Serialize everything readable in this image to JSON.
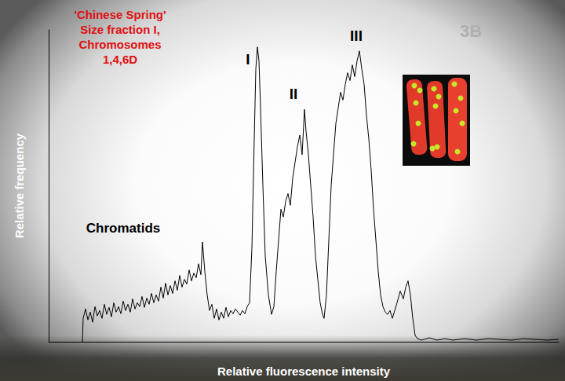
{
  "chart_data": {
    "type": "line",
    "title": [
      "'Chinese Spring'",
      "Size fraction I,",
      "Chromosomes",
      "1,4,6D"
    ],
    "x_label": "Relative fluorescence intensity",
    "y_label": "Relative frequency",
    "color": "#000000",
    "tick_labels": false,
    "grid": false,
    "xlim": [
      0,
      650
    ],
    "ylim": [
      0,
      400
    ],
    "x": [
      43,
      44,
      47,
      50,
      53,
      56,
      59,
      62,
      65,
      68,
      71,
      74,
      77,
      80,
      83,
      86,
      89,
      92,
      95,
      98,
      101,
      104,
      107,
      110,
      113,
      116,
      119,
      122,
      125,
      128,
      131,
      134,
      137,
      140,
      143,
      146,
      149,
      152,
      155,
      158,
      161,
      164,
      167,
      170,
      173,
      176,
      179,
      182,
      185,
      188,
      191,
      194,
      196,
      199,
      202,
      205,
      208,
      211,
      214,
      217,
      220,
      223,
      226,
      229,
      232,
      235,
      238,
      241,
      244,
      247,
      250,
      253,
      256,
      259,
      262,
      264,
      266,
      268,
      270,
      273,
      276,
      280,
      284,
      287,
      290,
      293,
      296,
      299,
      302,
      305,
      308,
      311,
      314,
      317,
      320,
      323,
      326,
      328,
      331,
      334,
      337,
      340,
      343,
      346,
      349,
      351,
      354,
      357,
      360,
      363,
      366,
      369,
      372,
      375,
      378,
      381,
      384,
      387,
      390,
      393,
      396,
      399,
      402,
      405,
      408,
      411,
      414,
      417,
      420,
      423,
      426,
      429,
      432,
      435,
      438,
      441,
      444,
      448,
      452,
      455,
      458,
      461,
      464,
      467,
      470,
      475,
      485,
      495,
      505,
      515,
      530,
      545,
      560,
      575,
      590,
      605,
      620,
      635,
      650
    ],
    "values": [
      0,
      30,
      42,
      28,
      38,
      25,
      45,
      33,
      40,
      30,
      48,
      35,
      44,
      32,
      50,
      38,
      45,
      36,
      52,
      40,
      48,
      38,
      55,
      42,
      50,
      45,
      58,
      44,
      56,
      48,
      62,
      50,
      60,
      52,
      70,
      56,
      75,
      60,
      72,
      62,
      78,
      66,
      85,
      70,
      80,
      74,
      92,
      78,
      88,
      82,
      100,
      86,
      128,
      90,
      60,
      40,
      48,
      30,
      42,
      28,
      38,
      30,
      44,
      32,
      40,
      36,
      42,
      38,
      34,
      40,
      36,
      45,
      50,
      120,
      260,
      350,
      378,
      360,
      300,
      200,
      110,
      60,
      35,
      45,
      90,
      130,
      170,
      160,
      180,
      190,
      175,
      210,
      230,
      250,
      265,
      240,
      298,
      270,
      240,
      200,
      160,
      110,
      80,
      50,
      35,
      30,
      60,
      130,
      200,
      240,
      280,
      300,
      320,
      310,
      330,
      345,
      335,
      355,
      340,
      360,
      373,
      350,
      330,
      290,
      260,
      220,
      170,
      130,
      90,
      60,
      45,
      38,
      35,
      40,
      30,
      40,
      50,
      65,
      55,
      70,
      78,
      60,
      30,
      8,
      4,
      2,
      5,
      2,
      4,
      2,
      4,
      2,
      4,
      3,
      2,
      4,
      3,
      2,
      3
    ],
    "annotations": [
      {
        "text": "I",
        "x": 254,
        "y": 362
      },
      {
        "text": "II",
        "x": 312,
        "y": 318
      },
      {
        "text": "III",
        "x": 392,
        "y": 392
      },
      {
        "text": "Chromatids",
        "x": 95,
        "y": 146
      }
    ],
    "inset_label": "3B"
  }
}
